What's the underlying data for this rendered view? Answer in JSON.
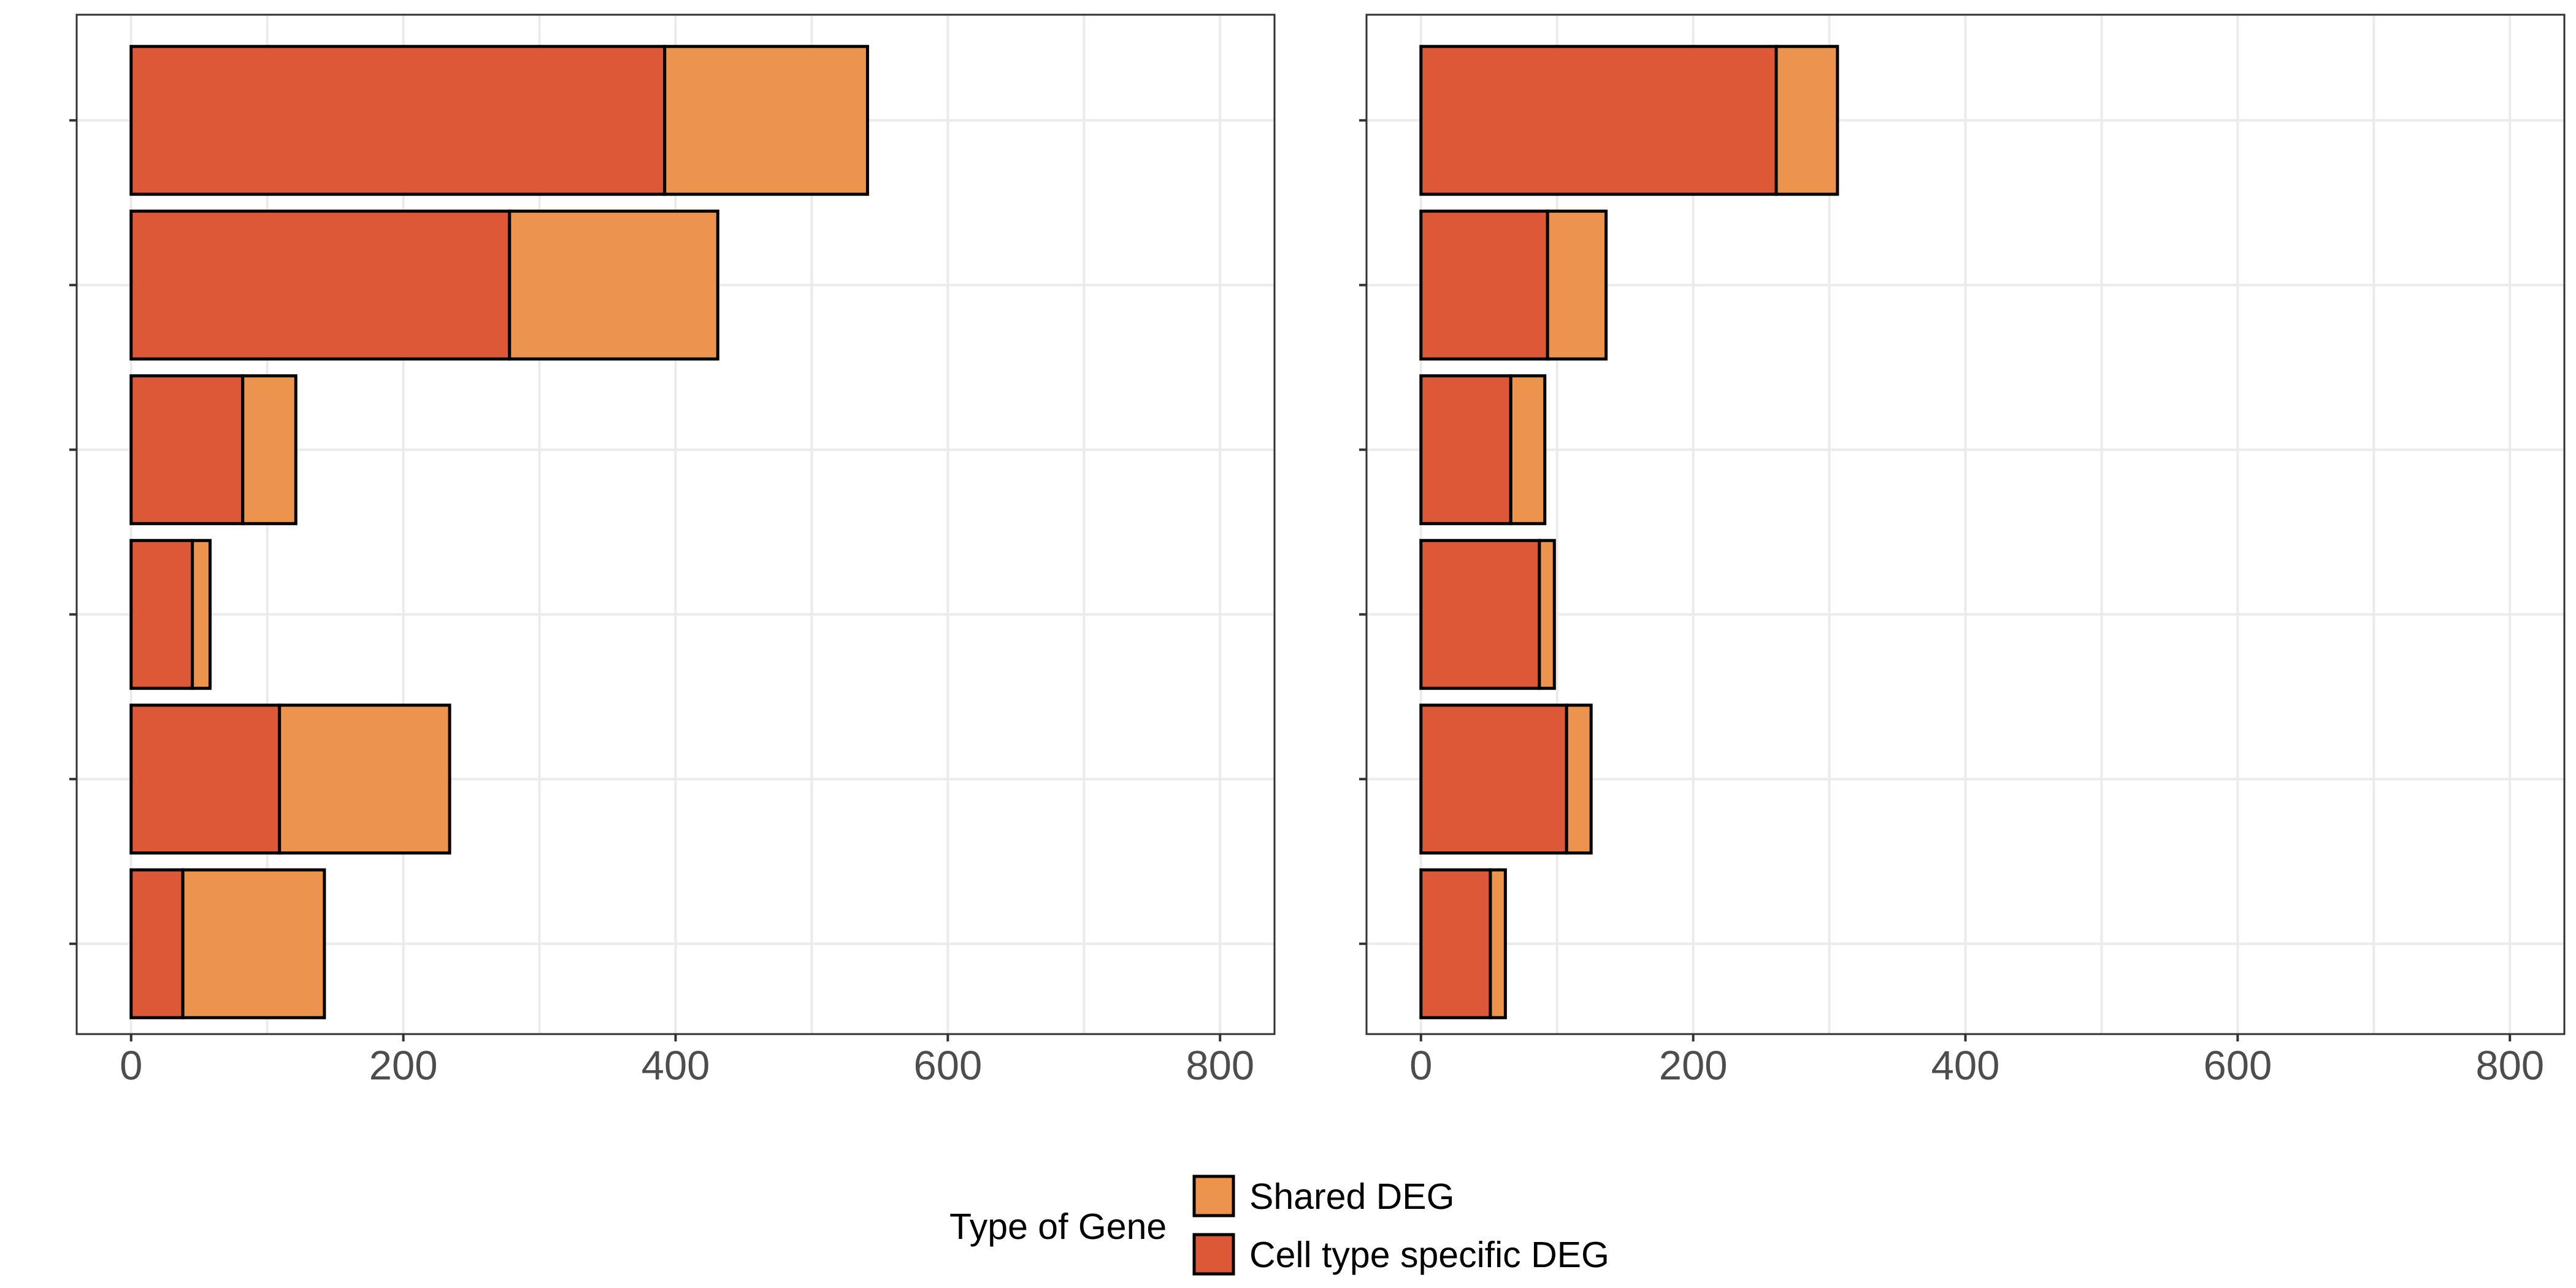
{
  "chart_data": [
    {
      "type": "bar",
      "orientation": "horizontal",
      "stacked": true,
      "title": "",
      "xlabel": "",
      "ylabel": "",
      "xlim": [
        -40,
        840
      ],
      "xticks": [
        0,
        200,
        400,
        600,
        800
      ],
      "categories": [
        "",
        "",
        "",
        "",
        "",
        ""
      ],
      "series": [
        {
          "name": "Cell type specific DEG",
          "values": [
            392,
            278,
            82,
            45,
            109,
            38
          ]
        },
        {
          "name": "Shared DEG",
          "values": [
            149,
            153,
            39,
            13,
            125,
            104
          ]
        }
      ],
      "grid": true
    },
    {
      "type": "bar",
      "orientation": "horizontal",
      "stacked": true,
      "title": "",
      "xlabel": "",
      "ylabel": "",
      "xlim": [
        -40,
        840
      ],
      "xticks": [
        0,
        200,
        400,
        600,
        800
      ],
      "categories": [
        "",
        "",
        "",
        "",
        "",
        ""
      ],
      "series": [
        {
          "name": "Cell type specific DEG",
          "values": [
            261,
            93,
            66,
            87,
            107,
            51
          ]
        },
        {
          "name": "Shared DEG",
          "values": [
            45,
            43,
            25,
            11,
            18,
            11
          ]
        }
      ],
      "grid": true
    }
  ],
  "legend": {
    "title": "Type of Gene",
    "position": "bottom",
    "items": [
      {
        "label": "Shared DEG",
        "color": "#EC944E"
      },
      {
        "label": "Cell type specific DEG",
        "color": "#DC5837"
      }
    ]
  },
  "colors": {
    "Cell type specific DEG": "#DC5837",
    "Shared DEG": "#EC944E"
  }
}
